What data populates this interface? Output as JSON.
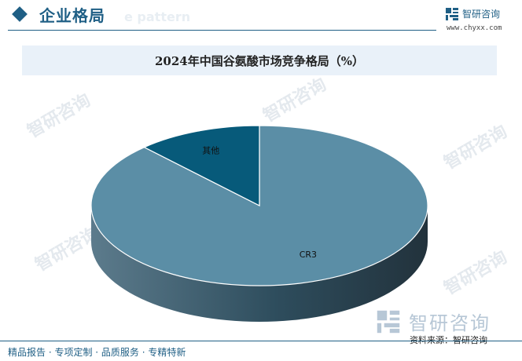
{
  "header": {
    "section_title": "企业格局",
    "ghost_text": "e pattern"
  },
  "brand": {
    "name": "智研咨询",
    "url": "www.chyxx.com"
  },
  "watermark": {
    "text": "智研咨询"
  },
  "chart_data": {
    "type": "pie",
    "title": "2024年中国谷氨酸市场竞争格局（%）",
    "categories": [
      "CR3",
      "其他"
    ],
    "values": [
      88,
      12
    ],
    "colors": [
      "#5b8ea6",
      "#075a7a"
    ],
    "legend": "none"
  },
  "footer": {
    "left_text": "精品报告 · 专项定制 · 品质服务 · 专精特新",
    "source_text": "资料来源：智研咨询"
  }
}
